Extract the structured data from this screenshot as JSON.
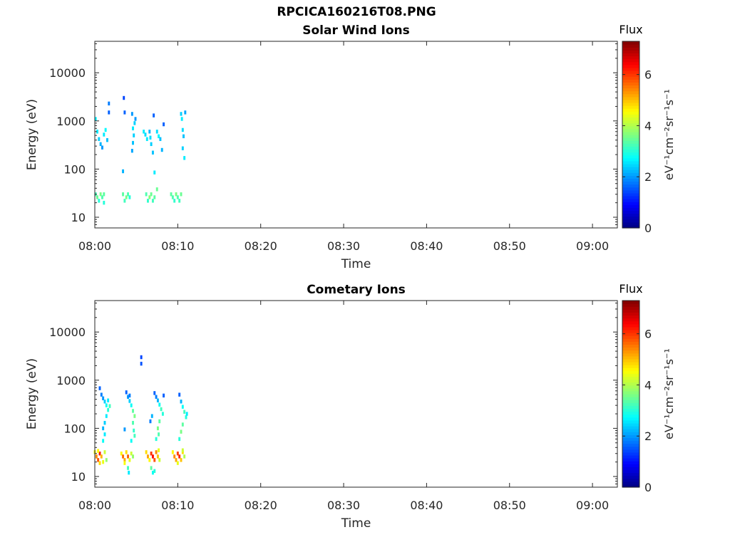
{
  "figure_title": "RPCICA160216T08.PNG",
  "chart_data": [
    {
      "type": "heatmap",
      "title": "Solar Wind Ions",
      "xlabel": "Time",
      "ylabel": "Energy (eV)",
      "yscale": "log",
      "xlim": [
        "08:00",
        "09:03"
      ],
      "ylim": [
        6,
        45000
      ],
      "xticks": [
        "08:00",
        "08:10",
        "08:20",
        "08:30",
        "08:40",
        "08:50",
        "09:00"
      ],
      "yticks": [
        "10",
        "100",
        "1000",
        "10000"
      ],
      "colorbar": {
        "label": "Flux",
        "unit": "eV⁻¹cm⁻²sr⁻¹s⁻¹",
        "range": [
          0,
          7.3
        ],
        "ticks": [
          "0",
          "2",
          "4",
          "6"
        ],
        "colormap": "jet"
      },
      "grid": false,
      "cells": [
        [
          0.1,
          1100,
          2.6
        ],
        [
          0.3,
          600,
          2.6
        ],
        [
          0.5,
          420,
          2.4
        ],
        [
          0.7,
          330,
          2.2
        ],
        [
          0.9,
          280,
          2.0
        ],
        [
          1.1,
          520,
          2.6
        ],
        [
          1.3,
          650,
          2.7
        ],
        [
          1.5,
          400,
          2.3
        ],
        [
          1.7,
          2300,
          1.8
        ],
        [
          1.7,
          1500,
          1.6
        ],
        [
          3.5,
          3000,
          1.4
        ],
        [
          3.6,
          1500,
          1.6
        ],
        [
          3.4,
          90,
          2.2
        ],
        [
          4.5,
          1400,
          2.0
        ],
        [
          4.6,
          700,
          2.6
        ],
        [
          4.7,
          500,
          2.4
        ],
        [
          4.6,
          350,
          2.3
        ],
        [
          4.5,
          240,
          2.1
        ],
        [
          4.8,
          900,
          2.4
        ],
        [
          4.9,
          1100,
          2.0
        ],
        [
          5.9,
          600,
          2.6
        ],
        [
          6.1,
          520,
          2.5
        ],
        [
          6.3,
          420,
          2.6
        ],
        [
          6.6,
          600,
          2.2
        ],
        [
          6.7,
          450,
          2.5
        ],
        [
          6.8,
          330,
          2.4
        ],
        [
          7.0,
          220,
          2.3
        ],
        [
          7.1,
          1300,
          1.6
        ],
        [
          7.2,
          85,
          2.6
        ],
        [
          7.5,
          600,
          2.5
        ],
        [
          7.7,
          480,
          2.7
        ],
        [
          7.9,
          420,
          2.3
        ],
        [
          8.1,
          250,
          2.2
        ],
        [
          8.3,
          850,
          1.6
        ],
        [
          10.4,
          1400,
          2.4
        ],
        [
          10.5,
          1100,
          2.6
        ],
        [
          10.6,
          650,
          2.5
        ],
        [
          10.6,
          270,
          2.4
        ],
        [
          10.7,
          480,
          2.3
        ],
        [
          10.8,
          170,
          2.6
        ],
        [
          10.9,
          1500,
          2.1
        ],
        [
          0.1,
          30,
          3.2
        ],
        [
          0.3,
          26,
          3.5
        ],
        [
          0.5,
          22,
          3.0
        ],
        [
          0.7,
          30,
          3.6
        ],
        [
          0.9,
          26,
          3.3
        ],
        [
          1.1,
          20,
          3.0
        ],
        [
          1.1,
          30,
          3.4
        ],
        [
          3.4,
          30,
          3.4
        ],
        [
          3.6,
          22,
          3.2
        ],
        [
          3.8,
          26,
          3.6
        ],
        [
          4.0,
          30,
          3.3
        ],
        [
          4.2,
          26,
          3.0
        ],
        [
          6.2,
          30,
          3.3
        ],
        [
          6.4,
          22,
          3.1
        ],
        [
          6.6,
          26,
          3.7
        ],
        [
          6.8,
          30,
          3.5
        ],
        [
          7.0,
          22,
          3.2
        ],
        [
          7.2,
          26,
          3.4
        ],
        [
          7.5,
          38,
          3.5
        ],
        [
          9.2,
          30,
          3.4
        ],
        [
          9.4,
          26,
          3.3
        ],
        [
          9.6,
          22,
          3.1
        ],
        [
          9.8,
          30,
          3.6
        ],
        [
          10.0,
          26,
          3.3
        ],
        [
          10.2,
          22,
          3.2
        ],
        [
          10.4,
          30,
          3.5
        ]
      ]
    },
    {
      "type": "heatmap",
      "title": "Cometary Ions",
      "xlabel": "Time",
      "ylabel": "Energy (eV)",
      "yscale": "log",
      "xlim": [
        "08:00",
        "09:03"
      ],
      "ylim": [
        6,
        45000
      ],
      "xticks": [
        "08:00",
        "08:10",
        "08:20",
        "08:30",
        "08:40",
        "08:50",
        "09:00"
      ],
      "yticks": [
        "10",
        "100",
        "1000",
        "10000"
      ],
      "colorbar": {
        "label": "Flux",
        "unit": "eV⁻¹cm⁻²sr⁻¹s⁻¹",
        "range": [
          0,
          7.3
        ],
        "ticks": [
          "0",
          "2",
          "4",
          "6"
        ],
        "colormap": "jet"
      },
      "grid": false,
      "cells": [
        [
          0.6,
          680,
          1.6
        ],
        [
          0.8,
          500,
          1.8
        ],
        [
          1.0,
          420,
          2.0
        ],
        [
          1.2,
          360,
          2.4
        ],
        [
          1.4,
          300,
          2.8
        ],
        [
          1.6,
          240,
          3.0
        ],
        [
          1.4,
          180,
          2.6
        ],
        [
          1.2,
          130,
          2.4
        ],
        [
          1.0,
          100,
          2.2
        ],
        [
          1.2,
          75,
          2.6
        ],
        [
          1.0,
          55,
          2.8
        ],
        [
          1.6,
          380,
          2.6
        ],
        [
          1.8,
          290,
          3.2
        ],
        [
          3.8,
          560,
          1.6
        ],
        [
          4.0,
          450,
          2.0
        ],
        [
          4.2,
          370,
          2.4
        ],
        [
          4.4,
          300,
          2.8
        ],
        [
          4.6,
          230,
          3.4
        ],
        [
          4.8,
          180,
          3.6
        ],
        [
          4.6,
          130,
          3.3
        ],
        [
          4.7,
          90,
          3.1
        ],
        [
          4.8,
          70,
          3.2
        ],
        [
          4.2,
          480,
          1.8
        ],
        [
          3.6,
          95,
          2.0
        ],
        [
          4.4,
          55,
          2.8
        ],
        [
          5.6,
          3000,
          1.4
        ],
        [
          5.6,
          2200,
          1.5
        ],
        [
          7.2,
          540,
          1.6
        ],
        [
          7.4,
          450,
          1.8
        ],
        [
          7.6,
          380,
          2.2
        ],
        [
          7.8,
          310,
          2.8
        ],
        [
          8.0,
          250,
          3.2
        ],
        [
          8.2,
          200,
          3.0
        ],
        [
          7.8,
          140,
          3.4
        ],
        [
          7.6,
          100,
          3.6
        ],
        [
          7.7,
          75,
          3.3
        ],
        [
          7.4,
          60,
          3.0
        ],
        [
          6.7,
          140,
          1.8
        ],
        [
          6.9,
          180,
          2.2
        ],
        [
          8.3,
          480,
          1.6
        ],
        [
          10.2,
          500,
          1.6
        ],
        [
          10.4,
          360,
          2.2
        ],
        [
          10.6,
          280,
          2.8
        ],
        [
          10.8,
          220,
          3.2
        ],
        [
          11.0,
          170,
          3.0
        ],
        [
          10.6,
          120,
          3.4
        ],
        [
          10.4,
          85,
          3.6
        ],
        [
          10.2,
          60,
          3.0
        ],
        [
          11.1,
          200,
          2.6
        ],
        [
          0.0,
          32,
          4.5
        ],
        [
          0.2,
          26,
          5.4
        ],
        [
          0.4,
          22,
          5.8
        ],
        [
          0.6,
          30,
          6.2
        ],
        [
          0.8,
          26,
          5.1
        ],
        [
          1.0,
          20,
          4.4
        ],
        [
          1.2,
          32,
          4.2
        ],
        [
          1.4,
          22,
          3.8
        ],
        [
          0.4,
          34,
          4.6
        ],
        [
          0.6,
          19,
          4.8
        ],
        [
          3.2,
          30,
          4.6
        ],
        [
          3.4,
          26,
          5.6
        ],
        [
          3.6,
          22,
          5.2
        ],
        [
          3.8,
          32,
          4.8
        ],
        [
          4.0,
          26,
          5.7
        ],
        [
          4.2,
          22,
          4.4
        ],
        [
          4.4,
          30,
          4.2
        ],
        [
          4.6,
          26,
          3.8
        ],
        [
          4.0,
          15,
          3.2
        ],
        [
          4.1,
          12,
          2.6
        ],
        [
          3.6,
          19,
          4.5
        ],
        [
          6.2,
          32,
          4.8
        ],
        [
          6.4,
          26,
          5.2
        ],
        [
          6.6,
          22,
          4.6
        ],
        [
          6.8,
          30,
          6.0
        ],
        [
          7.0,
          26,
          6.3
        ],
        [
          7.2,
          22,
          5.8
        ],
        [
          7.4,
          32,
          5.4
        ],
        [
          7.6,
          26,
          5.0
        ],
        [
          7.8,
          22,
          4.2
        ],
        [
          6.8,
          15,
          3.4
        ],
        [
          7.0,
          12,
          2.8
        ],
        [
          7.2,
          13,
          3.0
        ],
        [
          7.7,
          35,
          4.4
        ],
        [
          9.4,
          32,
          4.6
        ],
        [
          9.6,
          26,
          5.4
        ],
        [
          9.8,
          22,
          5.2
        ],
        [
          10.0,
          30,
          5.9
        ],
        [
          10.2,
          26,
          6.1
        ],
        [
          10.4,
          22,
          5.0
        ],
        [
          10.6,
          32,
          4.8
        ],
        [
          10.8,
          26,
          4.0
        ],
        [
          10.0,
          19,
          4.4
        ],
        [
          10.6,
          35,
          4.2
        ]
      ]
    }
  ]
}
